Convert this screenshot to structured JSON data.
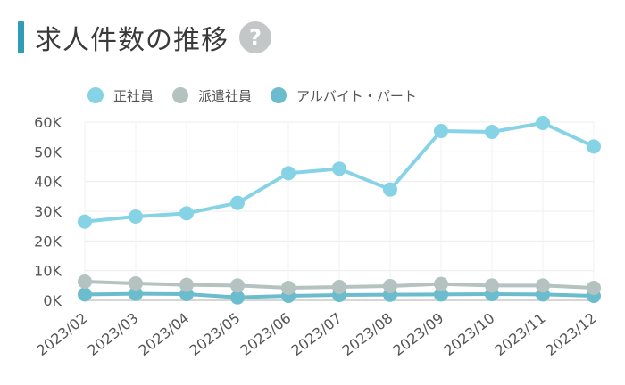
{
  "header": {
    "title": "求人件数の推移",
    "help_label": "?",
    "accent_color": "#2f9db5"
  },
  "chart_data": {
    "type": "line",
    "title": "",
    "xlabel": "",
    "ylabel": "",
    "categories": [
      "2023/02",
      "2023/03",
      "2023/04",
      "2023/05",
      "2023/06",
      "2023/07",
      "2023/08",
      "2023/09",
      "2023/10",
      "2023/11",
      "2023/12"
    ],
    "ylim": [
      0,
      60000
    ],
    "yticks": [
      0,
      10000,
      20000,
      30000,
      40000,
      50000,
      60000
    ],
    "ytick_labels": [
      "0K",
      "10K",
      "20K",
      "30K",
      "40K",
      "50K",
      "60K"
    ],
    "grid": "horizontal",
    "legend_position": "top-left",
    "series": [
      {
        "name": "正社員",
        "color": "#86d3e6",
        "values": [
          26500,
          28200,
          29300,
          32800,
          42800,
          44300,
          37300,
          57000,
          56700,
          59700,
          51800
        ]
      },
      {
        "name": "派遣社員",
        "color": "#b4c2c0",
        "values": [
          6300,
          5700,
          5200,
          5000,
          4200,
          4500,
          4800,
          5500,
          5000,
          5000,
          4200
        ]
      },
      {
        "name": "アルバイト・パート",
        "color": "#6bbccc",
        "values": [
          2000,
          2200,
          2100,
          1000,
          1500,
          1800,
          1900,
          2000,
          2100,
          2000,
          1500
        ]
      }
    ]
  }
}
